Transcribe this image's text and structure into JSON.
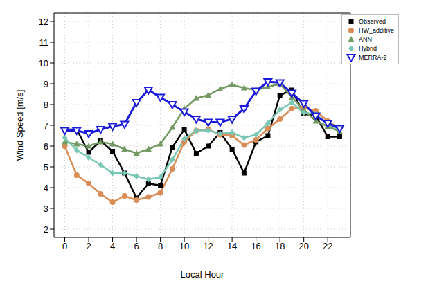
{
  "chart_data": {
    "type": "line",
    "xlabel": "Local Hour",
    "ylabel": "Wind Speed [m/s]",
    "x": [
      0,
      1,
      2,
      3,
      4,
      5,
      6,
      7,
      8,
      9,
      10,
      11,
      12,
      13,
      14,
      15,
      16,
      17,
      18,
      19,
      20,
      21,
      22,
      23
    ],
    "xlim": [
      -0.9,
      23.9
    ],
    "xticks": [
      0,
      2,
      4,
      6,
      8,
      10,
      12,
      14,
      16,
      18,
      20,
      22
    ],
    "ylim": [
      1.6,
      12.4
    ],
    "yticks": [
      2,
      3,
      4,
      5,
      6,
      7,
      8,
      9,
      10,
      11,
      12
    ],
    "grid": true,
    "legend": "upper right",
    "series": [
      {
        "name": "Observed",
        "color": "#000000",
        "marker": "square",
        "values": [
          6.8,
          6.8,
          5.7,
          6.25,
          5.75,
          4.7,
          3.5,
          4.2,
          4.1,
          5.95,
          6.8,
          5.65,
          6.0,
          6.65,
          5.85,
          4.7,
          6.2,
          6.5,
          8.45,
          8.7,
          7.55,
          7.45,
          6.45,
          6.45
        ]
      },
      {
        "name": "HW_additive",
        "color": "#d98c55",
        "marker": "circle",
        "values": [
          6.0,
          4.6,
          4.2,
          3.7,
          3.3,
          3.6,
          3.4,
          3.55,
          3.75,
          4.9,
          6.2,
          6.75,
          6.8,
          6.55,
          6.5,
          6.05,
          6.3,
          6.85,
          7.3,
          7.8,
          7.85,
          7.7,
          7.2,
          6.85
        ]
      },
      {
        "name": "ANN",
        "color": "#739a62",
        "marker": "triangle",
        "values": [
          6.2,
          6.1,
          6.0,
          6.2,
          6.1,
          5.85,
          5.65,
          5.85,
          6.1,
          6.9,
          7.8,
          8.3,
          8.45,
          8.75,
          8.95,
          8.8,
          8.7,
          8.85,
          9.0,
          8.35,
          7.75,
          7.2,
          6.95,
          6.7
        ]
      },
      {
        "name": "Hybrid",
        "color": "#78c7b4",
        "marker": "diamond",
        "values": [
          6.4,
          5.8,
          5.45,
          5.1,
          4.7,
          4.7,
          4.55,
          4.4,
          4.5,
          5.35,
          6.35,
          6.75,
          6.75,
          6.6,
          6.65,
          6.4,
          6.55,
          7.1,
          7.75,
          8.1,
          7.6,
          7.55,
          7.05,
          6.8
        ]
      },
      {
        "name": "MERRA-2",
        "color": "#1a1adb",
        "marker": "triangle_down_open",
        "values": [
          6.75,
          6.75,
          6.6,
          6.8,
          6.95,
          7.05,
          8.1,
          8.7,
          8.35,
          8.0,
          7.65,
          7.3,
          7.15,
          7.15,
          7.3,
          7.8,
          8.65,
          9.1,
          9.05,
          8.55,
          8.05,
          7.45,
          7.1,
          6.85
        ]
      }
    ]
  }
}
